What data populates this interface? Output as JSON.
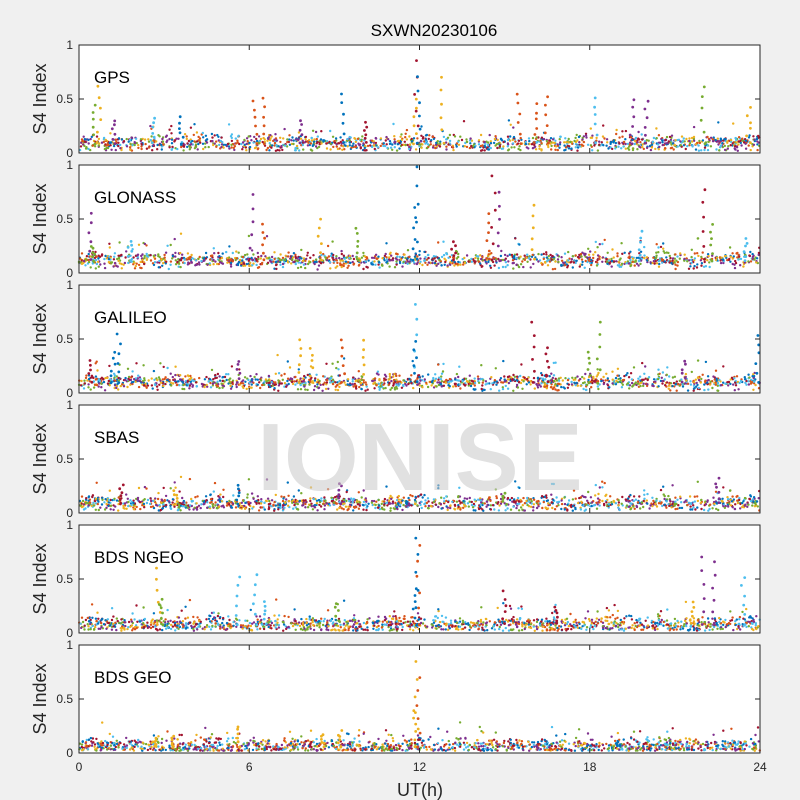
{
  "figure": {
    "title": "SXWN20230106",
    "xlabel": "UT(h)",
    "watermark": "IONISE",
    "background": "#f0f0f0",
    "panel_background": "#ffffff"
  },
  "chart_data": [
    {
      "type": "scatter",
      "label": "GPS",
      "ylabel": "S4 Index",
      "xlim": [
        0,
        24
      ],
      "ylim": [
        0,
        1
      ],
      "xticks": [
        0,
        6,
        12,
        18,
        24
      ],
      "yticks": [
        0,
        0.5,
        1
      ],
      "xticklabels_visible": false,
      "series_colors": [
        "#0072BD",
        "#D95319",
        "#EDB120",
        "#7E2F8E",
        "#77AC30",
        "#4DBEEE",
        "#A2142F"
      ],
      "baseline": 0.09,
      "spikes": [
        {
          "x": 0.5,
          "y": 0.45,
          "c": 4
        },
        {
          "x": 0.7,
          "y": 0.62,
          "c": 2
        },
        {
          "x": 1.2,
          "y": 0.3,
          "c": 3
        },
        {
          "x": 2.6,
          "y": 0.33,
          "c": 5
        },
        {
          "x": 3.6,
          "y": 0.33,
          "c": 0
        },
        {
          "x": 6.2,
          "y": 0.48,
          "c": 1
        },
        {
          "x": 6.5,
          "y": 0.5,
          "c": 1
        },
        {
          "x": 7.8,
          "y": 0.3,
          "c": 3
        },
        {
          "x": 9.3,
          "y": 0.55,
          "c": 0
        },
        {
          "x": 10.1,
          "y": 0.28,
          "c": 6
        },
        {
          "x": 11.9,
          "y": 0.85,
          "c": 6
        },
        {
          "x": 11.95,
          "y": 0.7,
          "c": 0
        },
        {
          "x": 11.85,
          "y": 0.5,
          "c": 2
        },
        {
          "x": 12.8,
          "y": 0.7,
          "c": 2
        },
        {
          "x": 15.5,
          "y": 0.55,
          "c": 1
        },
        {
          "x": 16.1,
          "y": 0.45,
          "c": 1
        },
        {
          "x": 16.5,
          "y": 0.52,
          "c": 1
        },
        {
          "x": 18.2,
          "y": 0.52,
          "c": 5
        },
        {
          "x": 19.5,
          "y": 0.5,
          "c": 3
        },
        {
          "x": 20.0,
          "y": 0.48,
          "c": 3
        },
        {
          "x": 22.0,
          "y": 0.62,
          "c": 4
        },
        {
          "x": 23.6,
          "y": 0.42,
          "c": 2
        }
      ]
    },
    {
      "type": "scatter",
      "label": "GLONASS",
      "ylabel": "S4 Index",
      "xlim": [
        0,
        24
      ],
      "ylim": [
        0,
        1
      ],
      "xticks": [
        0,
        6,
        12,
        18,
        24
      ],
      "yticks": [
        0,
        0.5,
        1
      ],
      "xticklabels_visible": false,
      "series_colors": [
        "#0072BD",
        "#D95319",
        "#EDB120",
        "#7E2F8E",
        "#77AC30",
        "#4DBEEE",
        "#A2142F"
      ],
      "baseline": 0.12,
      "spikes": [
        {
          "x": 0.4,
          "y": 0.55,
          "c": 3
        },
        {
          "x": 0.5,
          "y": 0.25,
          "c": 4
        },
        {
          "x": 1.8,
          "y": 0.3,
          "c": 5
        },
        {
          "x": 6.1,
          "y": 0.72,
          "c": 3
        },
        {
          "x": 6.5,
          "y": 0.45,
          "c": 1
        },
        {
          "x": 8.5,
          "y": 0.5,
          "c": 2
        },
        {
          "x": 9.8,
          "y": 0.42,
          "c": 4
        },
        {
          "x": 11.8,
          "y": 0.6,
          "c": 0
        },
        {
          "x": 11.95,
          "y": 0.98,
          "c": 0
        },
        {
          "x": 13.2,
          "y": 0.28,
          "c": 6
        },
        {
          "x": 14.6,
          "y": 0.9,
          "c": 6
        },
        {
          "x": 14.8,
          "y": 0.75,
          "c": 3
        },
        {
          "x": 14.4,
          "y": 0.55,
          "c": 1
        },
        {
          "x": 16.0,
          "y": 0.62,
          "c": 2
        },
        {
          "x": 19.8,
          "y": 0.38,
          "c": 5
        },
        {
          "x": 22.0,
          "y": 0.78,
          "c": 6
        },
        {
          "x": 22.3,
          "y": 0.45,
          "c": 4
        },
        {
          "x": 23.5,
          "y": 0.32,
          "c": 5
        }
      ]
    },
    {
      "type": "scatter",
      "label": "GALILEO",
      "ylabel": "S4 Index",
      "xlim": [
        0,
        24
      ],
      "ylim": [
        0,
        1
      ],
      "xticks": [
        0,
        6,
        12,
        18,
        24
      ],
      "yticks": [
        0,
        0.5,
        1
      ],
      "xticklabels_visible": false,
      "series_colors": [
        "#0072BD",
        "#D95319",
        "#EDB120",
        "#7E2F8E",
        "#77AC30",
        "#4DBEEE",
        "#A2142F"
      ],
      "baseline": 0.1,
      "spikes": [
        {
          "x": 0.4,
          "y": 0.3,
          "c": 6
        },
        {
          "x": 1.4,
          "y": 0.55,
          "c": 0
        },
        {
          "x": 1.2,
          "y": 0.38,
          "c": 0
        },
        {
          "x": 5.6,
          "y": 0.3,
          "c": 3
        },
        {
          "x": 7.8,
          "y": 0.5,
          "c": 2
        },
        {
          "x": 8.2,
          "y": 0.42,
          "c": 2
        },
        {
          "x": 9.3,
          "y": 0.5,
          "c": 1
        },
        {
          "x": 10.0,
          "y": 0.48,
          "c": 2
        },
        {
          "x": 11.9,
          "y": 0.82,
          "c": 5
        },
        {
          "x": 11.85,
          "y": 0.48,
          "c": 0
        },
        {
          "x": 16.0,
          "y": 0.65,
          "c": 6
        },
        {
          "x": 16.5,
          "y": 0.42,
          "c": 6
        },
        {
          "x": 18.3,
          "y": 0.65,
          "c": 4
        },
        {
          "x": 18.0,
          "y": 0.38,
          "c": 4
        },
        {
          "x": 21.3,
          "y": 0.3,
          "c": 3
        },
        {
          "x": 23.9,
          "y": 0.54,
          "c": 0
        }
      ]
    },
    {
      "type": "scatter",
      "label": "SBAS",
      "ylabel": "S4 Index",
      "xlim": [
        0,
        24
      ],
      "ylim": [
        0,
        1
      ],
      "xticks": [
        0,
        6,
        12,
        18,
        24
      ],
      "yticks": [
        0,
        0.5,
        1
      ],
      "xticklabels_visible": false,
      "series_colors": [
        "#0072BD",
        "#D95319",
        "#EDB120",
        "#7E2F8E",
        "#77AC30",
        "#4DBEEE",
        "#A2142F"
      ],
      "baseline": 0.09,
      "spikes": [
        {
          "x": 1.5,
          "y": 0.27,
          "c": 6
        },
        {
          "x": 3.4,
          "y": 0.2,
          "c": 2
        },
        {
          "x": 5.6,
          "y": 0.25,
          "c": 0
        },
        {
          "x": 9.2,
          "y": 0.28,
          "c": 3
        },
        {
          "x": 15.0,
          "y": 0.18,
          "c": 4
        },
        {
          "x": 22.5,
          "y": 0.32,
          "c": 3
        }
      ]
    },
    {
      "type": "scatter",
      "label": "BDS NGEO",
      "ylabel": "S4 Index",
      "xlim": [
        0,
        24
      ],
      "ylim": [
        0,
        1
      ],
      "xticks": [
        0,
        6,
        12,
        18,
        24
      ],
      "yticks": [
        0,
        0.5,
        1
      ],
      "xticklabels_visible": false,
      "series_colors": [
        "#0072BD",
        "#D95319",
        "#EDB120",
        "#7E2F8E",
        "#77AC30",
        "#4DBEEE",
        "#A2142F"
      ],
      "baseline": 0.08,
      "spikes": [
        {
          "x": 2.8,
          "y": 0.6,
          "c": 2
        },
        {
          "x": 2.9,
          "y": 0.32,
          "c": 4
        },
        {
          "x": 5.6,
          "y": 0.52,
          "c": 5
        },
        {
          "x": 6.2,
          "y": 0.55,
          "c": 5
        },
        {
          "x": 6.5,
          "y": 0.3,
          "c": 5
        },
        {
          "x": 9.1,
          "y": 0.28,
          "c": 4
        },
        {
          "x": 11.9,
          "y": 0.88,
          "c": 0
        },
        {
          "x": 11.95,
          "y": 0.82,
          "c": 1
        },
        {
          "x": 11.85,
          "y": 0.42,
          "c": 0
        },
        {
          "x": 15.0,
          "y": 0.38,
          "c": 6
        },
        {
          "x": 16.8,
          "y": 0.25,
          "c": 6
        },
        {
          "x": 22.0,
          "y": 0.7,
          "c": 3
        },
        {
          "x": 22.4,
          "y": 0.65,
          "c": 3
        },
        {
          "x": 23.4,
          "y": 0.52,
          "c": 5
        },
        {
          "x": 21.6,
          "y": 0.28,
          "c": 2
        }
      ]
    },
    {
      "type": "scatter",
      "label": "BDS GEO",
      "ylabel": "S4 Index",
      "xlim": [
        0,
        24
      ],
      "ylim": [
        0,
        1
      ],
      "xticks": [
        0,
        6,
        12,
        18,
        24
      ],
      "yticks": [
        0,
        0.5,
        1
      ],
      "xticklabels_visible": true,
      "series_colors": [
        "#0072BD",
        "#D95319",
        "#EDB120",
        "#7E2F8E",
        "#77AC30",
        "#4DBEEE",
        "#A2142F"
      ],
      "baseline": 0.06,
      "spikes": [
        {
          "x": 2.7,
          "y": 0.13,
          "c": 2
        },
        {
          "x": 3.3,
          "y": 0.16,
          "c": 2
        },
        {
          "x": 5.6,
          "y": 0.25,
          "c": 2
        },
        {
          "x": 8.6,
          "y": 0.17,
          "c": 2
        },
        {
          "x": 9.2,
          "y": 0.2,
          "c": 2
        },
        {
          "x": 11.9,
          "y": 0.84,
          "c": 2
        },
        {
          "x": 11.95,
          "y": 0.7,
          "c": 1
        },
        {
          "x": 11.85,
          "y": 0.4,
          "c": 2
        },
        {
          "x": 19.0,
          "y": 0.1,
          "c": 0
        }
      ]
    }
  ]
}
